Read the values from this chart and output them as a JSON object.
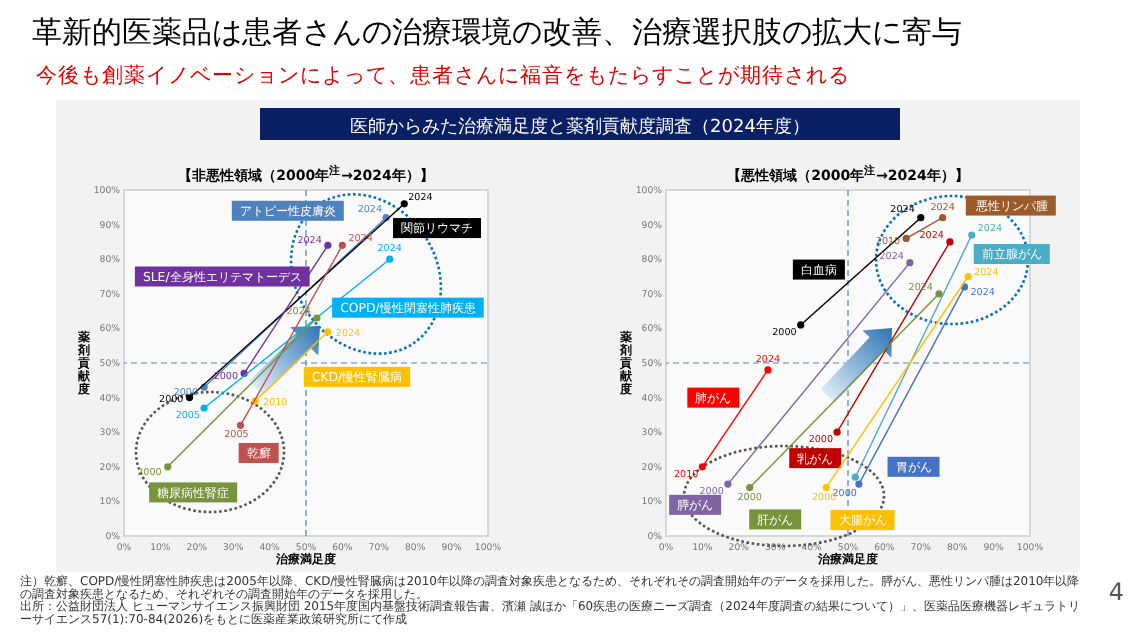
{
  "chart_data": [
    {
      "type": "line",
      "title": "【非悪性領域（2000年$^{注}$→2024年）】",
      "xlabel": "治療満足度",
      "ylabel": "薬剤貢献度",
      "marker": "circle",
      "legend": false,
      "annotations": [
        "革新的医薬品は患者さんの治療環境の改善、治療選択肢の拡大に寄与",
        "今後も創薬イノベーションによって、患者さんに福音をもたらすことが期待される",
        "医師からみた治療満足度と薬剤貢献度調査（2024年度）",
        "注）乾癬、COPD/慢性閉塞性肺疾患は2005年以降、CKD/慢性腎臓病は2010年以降の調査対象疾患となるため、それぞれその調査開始年のデータを採用した。膵がん、悪性リンパ腫は2010年以降の調査対象疾患となるため、それぞれその調査開始年のデータを採用した。",
        "出所：公益財団法人 ヒューマンサイエンス振興財団 2015年度国内基盤技術調査報告書、濱瀬 誠ほか「60疾患の医療ニーズ調査（2024年度調査の結果について）」、医薬品医療機器レギュラトリーサイエンス57(1):70-84(2026)をもとに医薬産業政策研究所にて作成",
        "4",
        {
          "text": "2000",
          "x": 22,
          "y": 43
        },
        {
          "text": "2024",
          "x": 72,
          "y": 92
        },
        {
          "text": "2000",
          "x": 18,
          "y": 40
        },
        {
          "text": "2024",
          "x": 77,
          "y": 96
        },
        {
          "text": "2000",
          "x": 33,
          "y": 47
        },
        {
          "text": "2024",
          "x": 56,
          "y": 84
        },
        {
          "text": "2005",
          "x": 22,
          "y": 37
        },
        {
          "text": "2024",
          "x": 73,
          "y": 80
        },
        {
          "text": "2010",
          "x": 36,
          "y": 39
        },
        {
          "text": "2024",
          "x": 56,
          "y": 59
        },
        {
          "text": "2005",
          "x": 32,
          "y": 32
        },
        {
          "text": "2024",
          "x": 60,
          "y": 84
        },
        {
          "text": "2000",
          "x": 12,
          "y": 20
        },
        {
          "text": "2024",
          "x": 53,
          "y": 63
        }
      ],
      "xlim": [
        0,
        100
      ],
      "ylim": [
        0,
        100
      ],
      "xticks": [
        {
          "value": 0,
          "label": "0%"
        },
        {
          "value": 10,
          "label": "10%"
        },
        {
          "value": 20,
          "label": "20%"
        },
        {
          "value": 30,
          "label": "30%"
        },
        {
          "value": 40,
          "label": "40%"
        },
        {
          "value": 50,
          "label": "50%"
        },
        {
          "value": 60,
          "label": "60%"
        },
        {
          "value": 70,
          "label": "70%"
        },
        {
          "value": 80,
          "label": "80%"
        },
        {
          "value": 90,
          "label": "90%"
        },
        {
          "value": 100,
          "label": "100%"
        }
      ],
      "yticks": [
        {
          "value": 0,
          "label": "0%"
        },
        {
          "value": 10,
          "label": "10%"
        },
        {
          "value": 20,
          "label": "20%"
        },
        {
          "value": 30,
          "label": "30%"
        },
        {
          "value": 40,
          "label": "40%"
        },
        {
          "value": 50,
          "label": "50%"
        },
        {
          "value": 60,
          "label": "60%"
        },
        {
          "value": 70,
          "label": "70%"
        },
        {
          "value": 80,
          "label": "80%"
        },
        {
          "value": 90,
          "label": "90%"
        },
        {
          "value": 100,
          "label": "100%"
        }
      ],
      "ref_lines": [
        {
          "axis": "x",
          "value": 50,
          "color": "#4f81bd",
          "line_style": "dashed"
        },
        {
          "axis": "y",
          "value": 50,
          "color": "#4f81bd",
          "line_style": "dashed"
        }
      ],
      "series": [
        {
          "name": "アトピー性皮膚炎",
          "color": "#4f81bd",
          "x": [
            22,
            72
          ],
          "values": [
            43,
            92
          ]
        },
        {
          "name": "関節リウマチ",
          "color": "#000000",
          "x": [
            18,
            77
          ],
          "values": [
            40,
            96
          ]
        },
        {
          "name": "SLE/全身性エリテマトーデス",
          "color": "#7030a0",
          "x": [
            33,
            56
          ],
          "values": [
            47,
            84
          ]
        },
        {
          "name": "COPD/慢性閉塞性肺疾患",
          "color": "#00b0f0",
          "x": [
            22,
            73
          ],
          "values": [
            37,
            80
          ]
        },
        {
          "name": "CKD/慢性腎臓病",
          "color": "#ffc000",
          "x": [
            36,
            56
          ],
          "values": [
            39,
            59
          ]
        },
        {
          "name": "乾癬",
          "color": "#c0504d",
          "x": [
            32,
            60
          ],
          "values": [
            32,
            84
          ]
        },
        {
          "name": "糖尿病性腎症",
          "color": "#77933c",
          "x": [
            12,
            53
          ],
          "values": [
            20,
            63
          ]
        }
      ]
    },
    {
      "type": "line",
      "title": "【悪性領域（2000年$^{注}$→2024年）】",
      "xlabel": "治療満足度",
      "ylabel": "薬剤貢献度",
      "marker": "circle",
      "legend": false,
      "annotations": [
        {
          "text": "2010",
          "x": 66,
          "y": 86
        },
        {
          "text": "2024",
          "x": 76,
          "y": 92
        },
        {
          "text": "2000",
          "x": 37,
          "y": 61
        },
        {
          "text": "2024",
          "x": 70,
          "y": 92
        },
        {
          "text": "2024",
          "x": 84,
          "y": 87
        },
        {
          "text": "2010",
          "x": 10,
          "y": 20
        },
        {
          "text": "2024",
          "x": 28,
          "y": 48
        },
        {
          "text": "2000",
          "x": 47,
          "y": 30
        },
        {
          "text": "2024",
          "x": 78,
          "y": 85
        },
        {
          "text": "2000",
          "x": 53,
          "y": 15
        },
        {
          "text": "2024",
          "x": 82,
          "y": 72
        },
        {
          "text": "2000",
          "x": 17,
          "y": 15
        },
        {
          "text": "2024",
          "x": 67,
          "y": 79
        },
        {
          "text": "2000",
          "x": 23,
          "y": 14
        },
        {
          "text": "2024",
          "x": 75,
          "y": 70
        },
        {
          "text": "2000",
          "x": 44,
          "y": 14
        },
        {
          "text": "2024",
          "x": 83,
          "y": 75
        }
      ],
      "xlim": [
        0,
        100
      ],
      "ylim": [
        0,
        100
      ],
      "xticks": [
        {
          "value": 0,
          "label": "0%"
        },
        {
          "value": 10,
          "label": "10%"
        },
        {
          "value": 20,
          "label": "20%"
        },
        {
          "value": 30,
          "label": "30%"
        },
        {
          "value": 40,
          "label": "40%"
        },
        {
          "value": 50,
          "label": "50%"
        },
        {
          "value": 60,
          "label": "60%"
        },
        {
          "value": 70,
          "label": "70%"
        },
        {
          "value": 80,
          "label": "80%"
        },
        {
          "value": 90,
          "label": "90%"
        },
        {
          "value": 100,
          "label": "100%"
        }
      ],
      "yticks": [
        {
          "value": 0,
          "label": "0%"
        },
        {
          "value": 10,
          "label": "10%"
        },
        {
          "value": 20,
          "label": "20%"
        },
        {
          "value": 30,
          "label": "30%"
        },
        {
          "value": 40,
          "label": "40%"
        },
        {
          "value": 50,
          "label": "50%"
        },
        {
          "value": 60,
          "label": "60%"
        },
        {
          "value": 70,
          "label": "70%"
        },
        {
          "value": 80,
          "label": "80%"
        },
        {
          "value": 90,
          "label": "90%"
        },
        {
          "value": 100,
          "label": "100%"
        }
      ],
      "ref_lines": [
        {
          "axis": "x",
          "value": 50,
          "color": "#4f81bd",
          "line_style": "dashed"
        },
        {
          "axis": "y",
          "value": 50,
          "color": "#4f81bd",
          "line_style": "dashed"
        }
      ],
      "series": [
        {
          "name": "悪性リンパ腫",
          "color": "#9c5b2a",
          "x": [
            66,
            76
          ],
          "values": [
            86,
            92
          ]
        },
        {
          "name": "白血病",
          "color": "#000000",
          "x": [
            37,
            70
          ],
          "values": [
            61,
            92
          ]
        },
        {
          "name": "前立腺がん",
          "color": "#4bacc6",
          "x": [
            52,
            84
          ],
          "values": [
            17,
            87
          ]
        },
        {
          "name": "肺がん",
          "color": "#ff0000",
          "x": [
            10,
            28
          ],
          "values": [
            20,
            48
          ]
        },
        {
          "name": "乳がん",
          "color": "#c00000",
          "x": [
            47,
            78
          ],
          "values": [
            30,
            85
          ]
        },
        {
          "name": "胃がん",
          "color": "#4472c4",
          "x": [
            53,
            82
          ],
          "values": [
            15,
            72
          ]
        },
        {
          "name": "膵がん",
          "color": "#8064a2",
          "x": [
            17,
            67
          ],
          "values": [
            15,
            79
          ]
        },
        {
          "name": "肝がん",
          "color": "#77933c",
          "x": [
            23,
            75
          ],
          "values": [
            14,
            70
          ]
        },
        {
          "name": "大腸がん",
          "color": "#ffc000",
          "x": [
            44,
            83
          ],
          "values": [
            14,
            75
          ]
        }
      ]
    }
  ]
}
